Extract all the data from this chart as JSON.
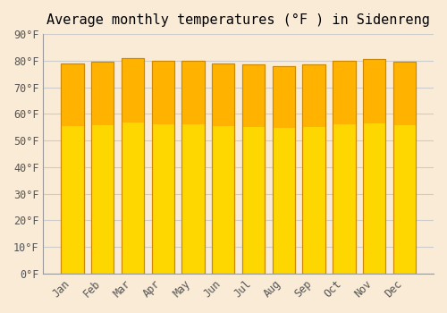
{
  "title": "Average monthly temperatures (°F ) in Sidenreng",
  "months": [
    "Jan",
    "Feb",
    "Mar",
    "Apr",
    "May",
    "Jun",
    "Jul",
    "Aug",
    "Sep",
    "Oct",
    "Nov",
    "Dec"
  ],
  "values": [
    79.0,
    79.5,
    81.0,
    80.0,
    80.0,
    79.0,
    78.5,
    78.0,
    78.5,
    80.0,
    80.5,
    79.5
  ],
  "ylim": [
    0,
    90
  ],
  "yticks": [
    0,
    10,
    20,
    30,
    40,
    50,
    60,
    70,
    80,
    90
  ],
  "ytick_labels": [
    "0°F",
    "10°F",
    "20°F",
    "30°F",
    "40°F",
    "50°F",
    "60°F",
    "70°F",
    "80°F",
    "90°F"
  ],
  "bar_color_top": "#FFA500",
  "bar_color_bottom": "#FFD700",
  "bar_edge_color": "#CC8800",
  "background_color": "#FAEBD7",
  "grid_color": "#CCCCCC",
  "title_fontsize": 11,
  "tick_fontsize": 8.5,
  "font_family": "monospace"
}
